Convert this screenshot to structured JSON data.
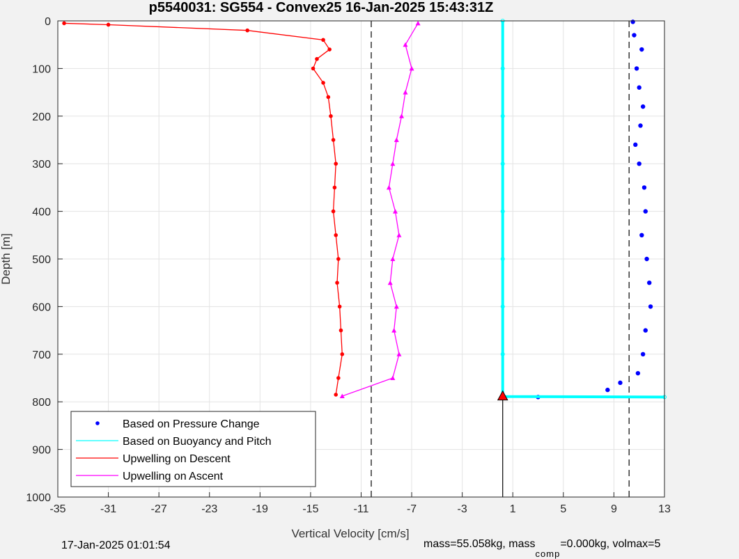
{
  "chart_data": {
    "type": "scatter",
    "title": "p5540031: SG554 - Convex25 16-Jan-2025 15:43:31Z",
    "xlabel": "Vertical Velocity [cm/s]",
    "ylabel": "Depth [m]",
    "xlim": [
      -35,
      13
    ],
    "ylim": [
      0,
      1000
    ],
    "y_reversed": true,
    "grid": true,
    "xticks": [
      -35,
      -31,
      -27,
      -23,
      -19,
      -15,
      -11,
      -7,
      -3,
      1,
      5,
      9,
      13
    ],
    "yticks": [
      0,
      100,
      200,
      300,
      400,
      500,
      600,
      700,
      800,
      900,
      1000
    ],
    "legend_position": "bottom-left",
    "legend": [
      {
        "label": "Based on Pressure Change",
        "color": "#0000ff",
        "style": "dot"
      },
      {
        "label": "Based on Buoyancy and Pitch",
        "color": "#00ffff",
        "style": "line"
      },
      {
        "label": "Upwelling on Descent",
        "color": "#ff0000",
        "style": "line"
      },
      {
        "label": "Upwelling on Ascent",
        "color": "#ff00ff",
        "style": "line"
      }
    ],
    "reference_lines": [
      {
        "x": -10.2,
        "style": "dashed",
        "color": "#000000"
      },
      {
        "x": 10.2,
        "style": "dashed",
        "color": "#000000"
      },
      {
        "x": 0.2,
        "style": "solid",
        "color": "#000000",
        "from_depth": 790,
        "to_depth": 1000
      }
    ],
    "series": [
      {
        "name": "Based on Pressure Change",
        "color": "#0000ff",
        "depth": [
          2,
          30,
          60,
          100,
          140,
          180,
          220,
          260,
          300,
          350,
          400,
          450,
          500,
          550,
          600,
          650,
          700,
          740,
          760,
          775,
          790
        ],
        "velocity": [
          10.5,
          10.6,
          11.2,
          10.8,
          11.0,
          11.3,
          11.1,
          10.7,
          11.0,
          11.4,
          11.5,
          11.2,
          11.6,
          11.8,
          11.9,
          11.5,
          11.3,
          10.9,
          9.5,
          8.5,
          3.0
        ]
      },
      {
        "name": "Based on Buoyancy and Pitch",
        "color": "#00ffff",
        "depth": [
          0,
          100,
          200,
          300,
          400,
          500,
          600,
          700,
          789,
          790
        ],
        "velocity": [
          0.2,
          0.2,
          0.2,
          0.2,
          0.2,
          0.2,
          0.2,
          0.2,
          0.2,
          13
        ]
      },
      {
        "name": "Upwelling on Descent",
        "color": "#ff0000",
        "depth": [
          5,
          8,
          20,
          40,
          60,
          80,
          100,
          130,
          160,
          200,
          250,
          300,
          350,
          400,
          450,
          500,
          550,
          600,
          650,
          700,
          750,
          785
        ],
        "velocity": [
          -34.5,
          -31,
          -20,
          -14,
          -13.5,
          -14.5,
          -14.8,
          -14,
          -13.6,
          -13.4,
          -13.2,
          -13.0,
          -13.1,
          -13.2,
          -13.0,
          -12.8,
          -12.9,
          -12.7,
          -12.6,
          -12.5,
          -12.8,
          -13.0
        ]
      },
      {
        "name": "Upwelling on Ascent",
        "color": "#ff00ff",
        "depth": [
          5,
          50,
          100,
          150,
          200,
          250,
          300,
          350,
          400,
          450,
          500,
          550,
          600,
          650,
          700,
          750,
          788
        ],
        "velocity": [
          -6.5,
          -7.5,
          -7.0,
          -7.5,
          -7.8,
          -8.2,
          -8.5,
          -8.8,
          -8.3,
          -8.0,
          -8.5,
          -8.7,
          -8.2,
          -8.4,
          -8.0,
          -8.5,
          -12.5
        ]
      }
    ]
  },
  "footer": {
    "timestamp": "17-Jan-2025 01:01:54",
    "mass_prefix": "mass=55.058kg, mass",
    "mass_sub": "comp",
    "mass_suffix": "=0.000kg, volmax=5"
  }
}
